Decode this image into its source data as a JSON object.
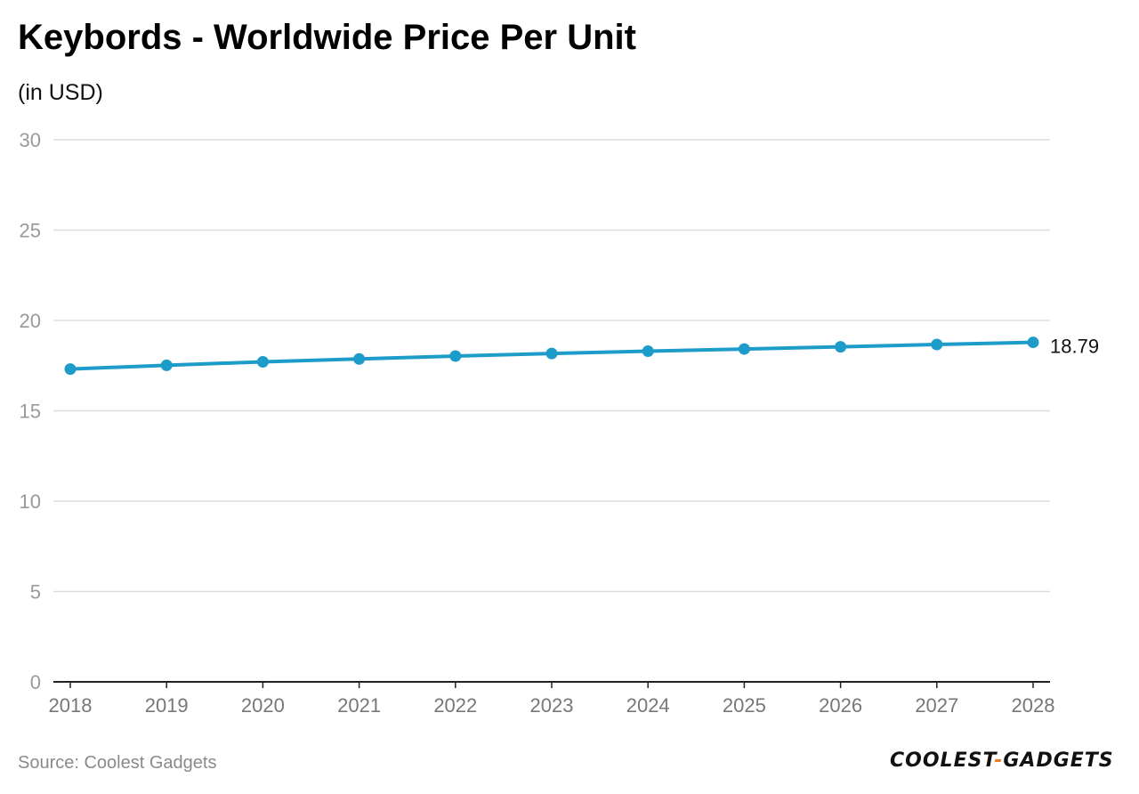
{
  "title": "Keybords - Worldwide Price Per Unit",
  "subtitle": "(in USD)",
  "source": "Source: Coolest Gadgets",
  "logo": {
    "part1": "COOLEST",
    "dash": "-",
    "part2": "GADGETS"
  },
  "colors": {
    "line": "#1d9bc9",
    "grid": "#dddddd",
    "axis": "#222222",
    "tick_text": "#999999",
    "label_text": "#777777",
    "accent": "#f07c22"
  },
  "chart_data": {
    "type": "line",
    "title": "Keybords - Worldwide Price Per Unit",
    "subtitle": "(in USD)",
    "xlabel": "",
    "ylabel": "",
    "categories": [
      "2018",
      "2019",
      "2020",
      "2021",
      "2022",
      "2023",
      "2024",
      "2025",
      "2026",
      "2027",
      "2028"
    ],
    "series": [
      {
        "name": "Price Per Unit",
        "values": [
          17.31,
          17.52,
          17.71,
          17.87,
          18.03,
          18.17,
          18.3,
          18.42,
          18.54,
          18.67,
          18.79
        ]
      }
    ],
    "ylim": [
      0,
      30
    ],
    "yticks": [
      0,
      5,
      10,
      15,
      20,
      25,
      30
    ],
    "grid": true,
    "data_labels": [
      {
        "index": 10,
        "text": "18.79"
      }
    ]
  }
}
